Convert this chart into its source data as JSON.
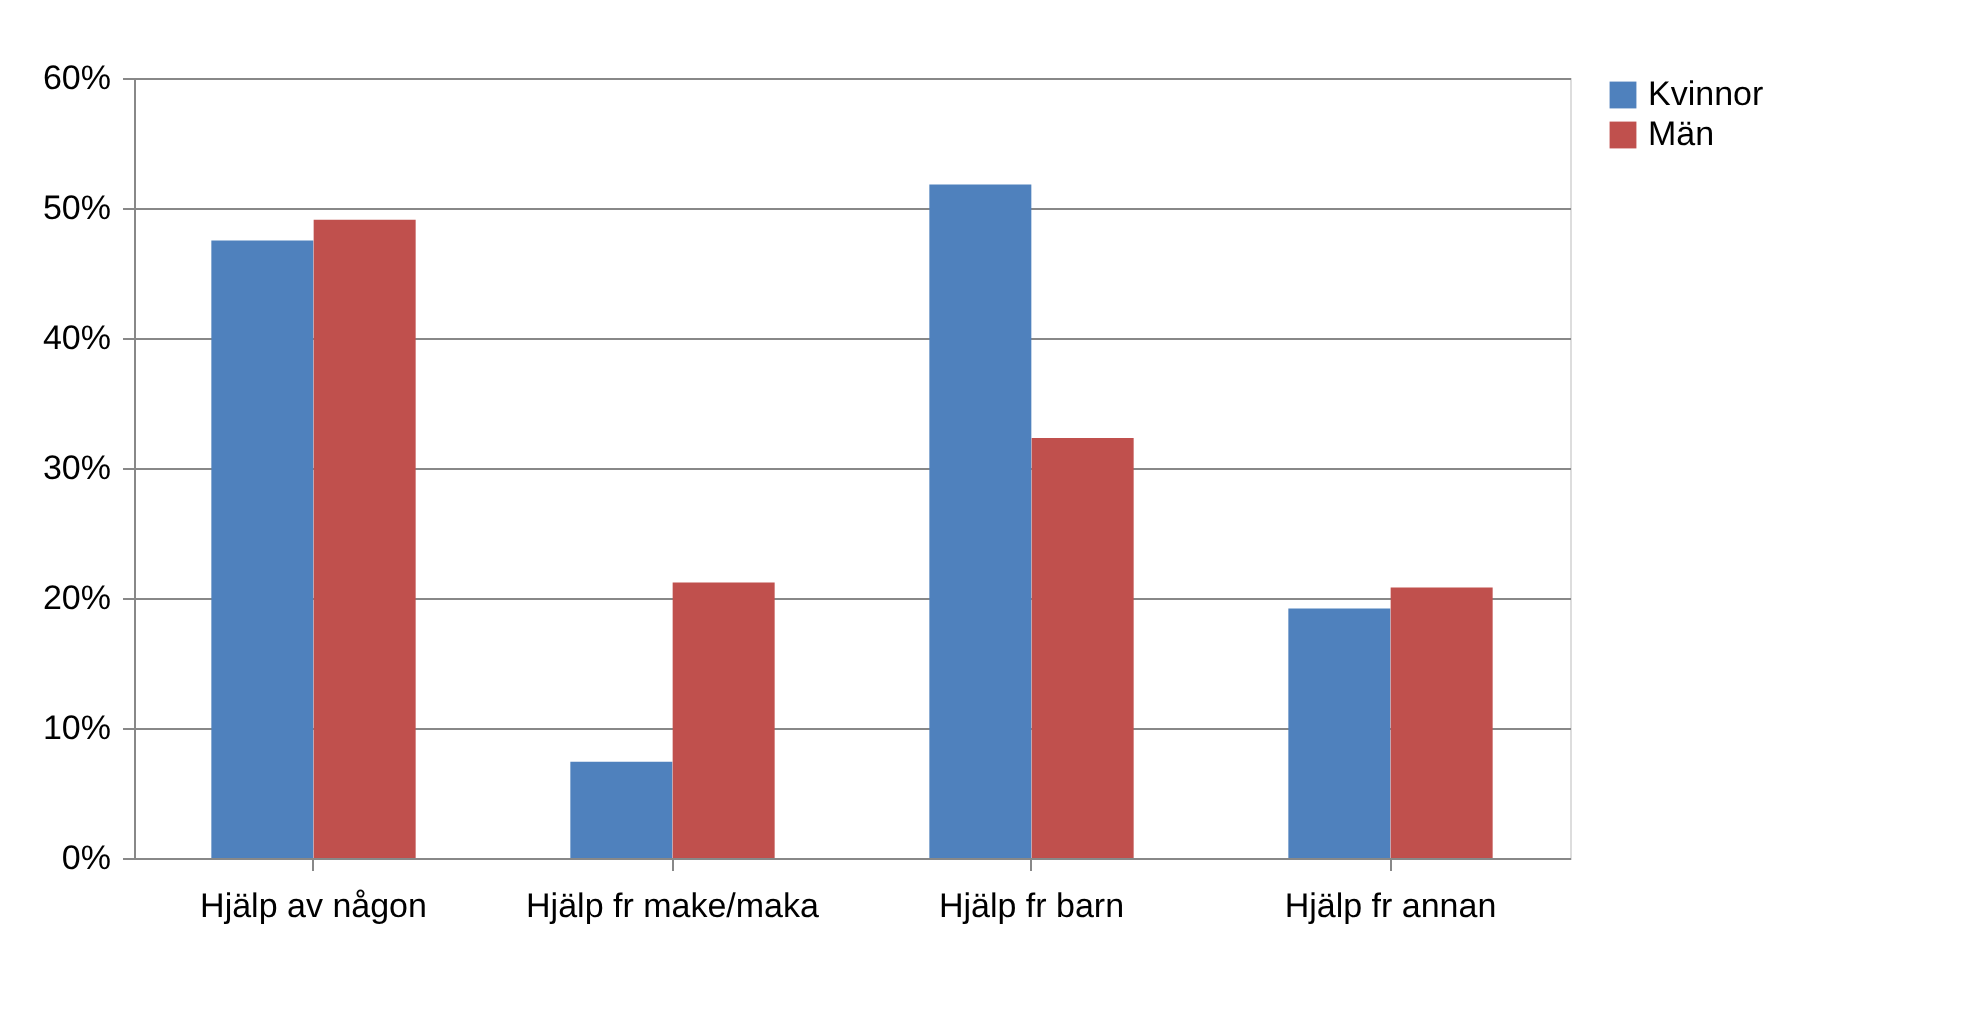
{
  "chart_data": {
    "type": "bar",
    "categories": [
      "Hjälp av någon",
      "Hjälp fr make/maka",
      "Hjälp fr barn",
      "Hjälp fr annan"
    ],
    "series": [
      {
        "name": "Kvinnor",
        "color": "#4f81bd",
        "values": [
          47.5,
          7.4,
          51.8,
          19.2
        ]
      },
      {
        "name": "Män",
        "color": "#c0504d",
        "values": [
          49.1,
          21.2,
          32.3,
          20.8
        ]
      }
    ],
    "ylim": [
      0,
      60
    ],
    "yticks": [
      {
        "value": 0,
        "label": "0%"
      },
      {
        "value": 10,
        "label": "10%"
      },
      {
        "value": 20,
        "label": "20%"
      },
      {
        "value": 30,
        "label": "30%"
      },
      {
        "value": 40,
        "label": "40%"
      },
      {
        "value": 50,
        "label": "50%"
      },
      {
        "value": 60,
        "label": "60%"
      }
    ],
    "grid": "y",
    "legend": "right"
  }
}
